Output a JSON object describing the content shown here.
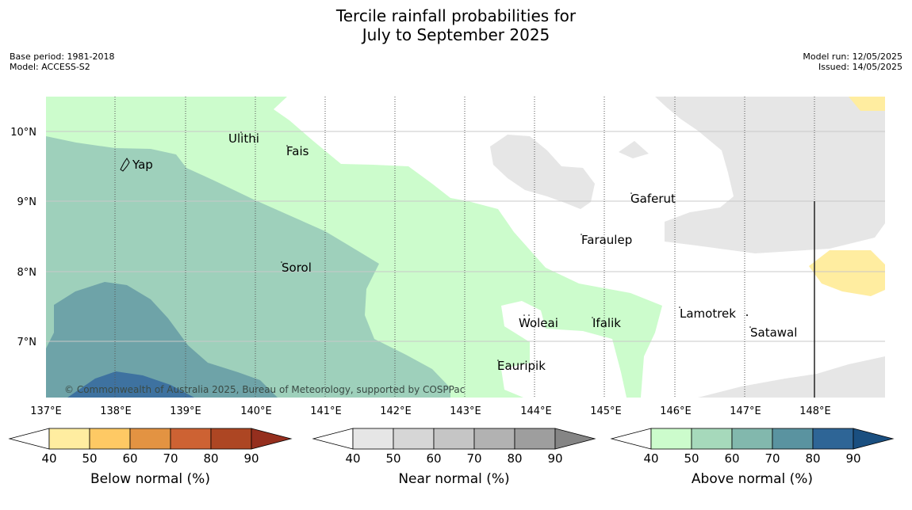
{
  "title": "Tercile rainfall probabilities for",
  "title_line2": "July to September 2025",
  "meta": {
    "base_period": "Base period: 1981-2018",
    "model": "Model: ACCESS-S2",
    "model_run": "Model run: 12/05/2025",
    "issued": "Issued: 14/05/2025"
  },
  "map": {
    "lat_labels": [
      "10°N",
      "9°N",
      "8°N",
      "7°N"
    ],
    "lon_labels": [
      "137°E",
      "138°E",
      "139°E",
      "140°E",
      "141°E",
      "142°E",
      "143°E",
      "144°E",
      "145°E",
      "146°E",
      "147°E",
      "148°E"
    ],
    "places": [
      "Ulithi",
      "Fais",
      "Yap",
      "Gaferut",
      "Faraulep",
      "Sorol",
      "Lamotrek",
      "Woleai",
      "Ifalik",
      "Satawal",
      "Eauripik"
    ],
    "copyright": "© Commonwealth of Australia 2025, Bureau of Meteorology, supported by COSPPac"
  },
  "colorbars": [
    {
      "label": "Below normal (%)",
      "ticks": [
        "40",
        "50",
        "60",
        "70",
        "80",
        "90"
      ],
      "colors": [
        "#ffeda0",
        "#fec964",
        "#e39342",
        "#cd6233",
        "#ad4623",
        "#952f1e"
      ]
    },
    {
      "label": "Near normal (%)",
      "ticks": [
        "40",
        "50",
        "60",
        "70",
        "80",
        "90"
      ],
      "colors": [
        "#e6e6e6",
        "#d6d6d6",
        "#c5c5c5",
        "#b2b2b2",
        "#9e9e9e",
        "#858585"
      ]
    },
    {
      "label": "Above normal (%)",
      "ticks": [
        "40",
        "50",
        "60",
        "70",
        "80",
        "90"
      ],
      "colors": [
        "#ccfccc",
        "#a6d9bb",
        "#82b8ad",
        "#5a93a0",
        "#2e6596",
        "#1a4f80"
      ]
    }
  ]
}
